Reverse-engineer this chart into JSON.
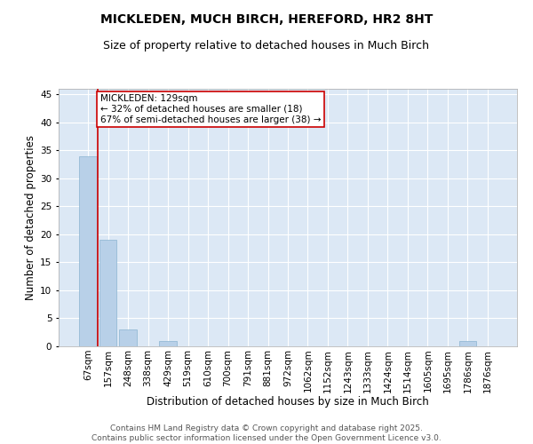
{
  "title": "MICKLEDEN, MUCH BIRCH, HEREFORD, HR2 8HT",
  "subtitle": "Size of property relative to detached houses in Much Birch",
  "xlabel": "Distribution of detached houses by size in Much Birch",
  "ylabel": "Number of detached properties",
  "categories": [
    "67sqm",
    "157sqm",
    "248sqm",
    "338sqm",
    "429sqm",
    "519sqm",
    "610sqm",
    "700sqm",
    "791sqm",
    "881sqm",
    "972sqm",
    "1062sqm",
    "1152sqm",
    "1243sqm",
    "1333sqm",
    "1424sqm",
    "1514sqm",
    "1605sqm",
    "1695sqm",
    "1786sqm",
    "1876sqm"
  ],
  "values": [
    34,
    19,
    3,
    0,
    1,
    0,
    0,
    0,
    0,
    0,
    0,
    0,
    0,
    0,
    0,
    0,
    0,
    0,
    0,
    1,
    0
  ],
  "bar_color": "#b8d0e8",
  "bar_edge_color": "#8ab4d0",
  "property_line_color": "#cc0000",
  "annotation_text": "MICKLEDEN: 129sqm\n← 32% of detached houses are smaller (18)\n67% of semi-detached houses are larger (38) →",
  "annotation_box_color": "#ffffff",
  "annotation_box_edge_color": "#cc0000",
  "ylim": [
    0,
    46
  ],
  "yticks": [
    0,
    5,
    10,
    15,
    20,
    25,
    30,
    35,
    40,
    45
  ],
  "bg_color": "#dce8f5",
  "grid_color": "#ffffff",
  "footer": "Contains HM Land Registry data © Crown copyright and database right 2025.\nContains public sector information licensed under the Open Government Licence v3.0.",
  "title_fontsize": 10,
  "subtitle_fontsize": 9,
  "xlabel_fontsize": 8.5,
  "ylabel_fontsize": 8.5,
  "tick_fontsize": 7.5,
  "annotation_fontsize": 7.5,
  "footer_fontsize": 6.5
}
